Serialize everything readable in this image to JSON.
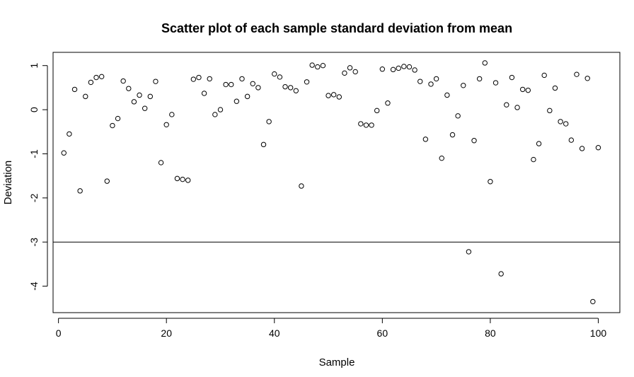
{
  "chart_data": {
    "type": "scatter",
    "title": "Scatter plot of each sample standard deviation from mean",
    "xlabel": "Sample",
    "ylabel": "Deviation",
    "xlim": [
      -1,
      104
    ],
    "ylim": [
      -4.6,
      1.3
    ],
    "x_ticks": [
      0,
      20,
      40,
      60,
      80,
      100
    ],
    "y_ticks": [
      1,
      0,
      -1,
      -2,
      -3,
      -4
    ],
    "grid": false,
    "reference_line": {
      "y": -3
    },
    "series": [
      {
        "x": [
          1,
          2,
          3,
          4,
          5,
          6,
          7,
          8,
          9,
          10,
          11,
          12,
          13,
          14,
          15,
          16,
          17,
          18,
          19,
          20,
          21,
          22,
          23,
          24,
          25,
          26,
          27,
          28,
          29,
          30,
          31,
          32,
          33,
          34,
          35,
          36,
          37,
          38,
          39,
          40,
          41,
          42,
          43,
          44,
          45,
          46,
          47,
          48,
          49,
          50,
          51,
          52,
          53,
          54,
          55,
          56,
          57,
          58,
          59,
          60,
          61,
          62,
          63,
          64,
          65,
          66,
          67,
          68,
          69,
          70,
          71,
          72,
          73,
          74,
          75,
          76,
          77,
          78,
          79,
          80,
          81,
          82,
          83,
          84,
          85,
          86,
          87,
          88,
          89,
          90,
          91,
          92,
          93,
          94,
          95,
          96,
          97,
          98,
          99,
          100
        ],
        "y": [
          -0.98,
          -0.55,
          0.46,
          -1.84,
          0.3,
          0.62,
          0.73,
          0.75,
          -1.62,
          -0.36,
          -0.2,
          0.65,
          0.48,
          0.18,
          0.33,
          0.03,
          0.3,
          0.64,
          -1.2,
          -0.34,
          -0.11,
          -1.56,
          -1.58,
          -1.6,
          0.69,
          0.73,
          0.37,
          0.7,
          -0.11,
          0.0,
          0.57,
          0.57,
          0.19,
          0.7,
          0.3,
          0.59,
          0.5,
          -0.79,
          -0.27,
          0.81,
          0.74,
          0.52,
          0.5,
          0.43,
          -1.73,
          0.63,
          1.01,
          0.97,
          1.0,
          0.32,
          0.34,
          0.29,
          0.83,
          0.95,
          0.86,
          -0.32,
          -0.35,
          -0.35,
          -0.02,
          0.92,
          0.15,
          0.91,
          0.94,
          0.98,
          0.97,
          0.9,
          0.64,
          -0.67,
          0.58,
          0.7,
          -1.1,
          0.33,
          -0.57,
          -0.14,
          0.55,
          -3.22,
          -0.7,
          0.7,
          1.06,
          -1.63,
          0.61,
          -3.72,
          0.11,
          0.73,
          0.05,
          0.46,
          0.44,
          -1.13,
          -0.77,
          0.78,
          -0.02,
          0.49,
          -0.27,
          -0.32,
          -0.69,
          0.8,
          -0.88,
          0.71,
          -4.35,
          -0.86
        ]
      }
    ]
  }
}
